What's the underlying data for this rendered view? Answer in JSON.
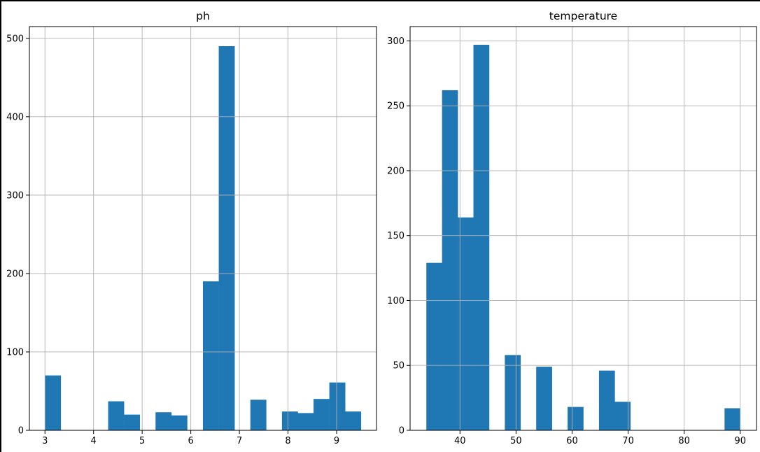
{
  "colors": {
    "bar": "#1f77b4",
    "grid": "#b0b0b0",
    "axis": "#000000"
  },
  "chart_data": [
    {
      "type": "bar",
      "title": "ph",
      "xlabel": "",
      "ylabel": "",
      "grid": true,
      "xlim": [
        2.68,
        9.82
      ],
      "ylim": [
        0,
        515
      ],
      "xticks": [
        3,
        4,
        5,
        6,
        7,
        8,
        9
      ],
      "yticks": [
        0,
        100,
        200,
        300,
        400,
        500
      ],
      "bin_edges": [
        3.0,
        3.325,
        3.65,
        3.975,
        4.3,
        4.625,
        4.95,
        5.275,
        5.6,
        5.925,
        6.25,
        6.575,
        6.9,
        7.225,
        7.55,
        7.875,
        8.2,
        8.525,
        8.85,
        9.175,
        9.5
      ],
      "values": [
        70,
        0,
        0,
        0,
        37,
        20,
        0,
        23,
        19,
        0,
        190,
        490,
        0,
        39,
        0,
        24,
        22,
        40,
        61,
        24
      ]
    },
    {
      "type": "bar",
      "title": "temperature",
      "xlabel": "",
      "ylabel": "",
      "grid": true,
      "xlim": [
        31.1,
        92.9
      ],
      "ylim": [
        0,
        311
      ],
      "xticks": [
        40,
        50,
        60,
        70,
        80,
        90
      ],
      "yticks": [
        0,
        50,
        100,
        150,
        200,
        250,
        300
      ],
      "bin_edges": [
        34.0,
        36.8,
        39.6,
        42.4,
        45.2,
        48.0,
        50.8,
        53.6,
        56.4,
        59.2,
        62.0,
        64.8,
        67.6,
        70.4,
        73.2,
        76.0,
        78.8,
        81.6,
        84.4,
        87.2,
        90.0
      ],
      "values": [
        129,
        262,
        164,
        297,
        0,
        58,
        0,
        49,
        0,
        18,
        0,
        46,
        22,
        0,
        0,
        0,
        0,
        0,
        0,
        17
      ]
    }
  ]
}
